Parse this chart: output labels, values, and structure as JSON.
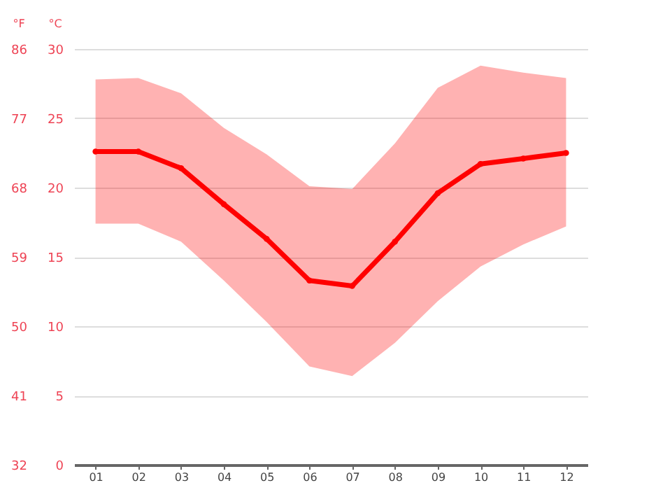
{
  "chart_data": {
    "type": "line",
    "ylabel": "°F",
    "y2label": "°C",
    "categories": [
      "01",
      "02",
      "03",
      "04",
      "05",
      "06",
      "07",
      "08",
      "09",
      "10",
      "11",
      "12"
    ],
    "series": [
      {
        "color": "#ff0000",
        "axis": "y2",
        "values": [
          22.6,
          22.6,
          21.4,
          18.8,
          16.3,
          13.3,
          12.9,
          16.1,
          19.6,
          21.7,
          22.1,
          22.5
        ],
        "lower": [
          17.4,
          17.4,
          16.1,
          13.3,
          10.3,
          7.1,
          6.4,
          8.8,
          11.8,
          14.3,
          15.9,
          17.2
        ],
        "upper": [
          27.8,
          27.9,
          26.8,
          24.3,
          22.4,
          20.1,
          19.9,
          23.2,
          27.2,
          28.8,
          28.3,
          27.9
        ]
      }
    ],
    "ylim": [
      32,
      86
    ],
    "yticks": [
      32,
      41,
      50,
      59,
      68,
      77,
      86
    ],
    "y2lim": [
      0,
      30
    ],
    "y2ticks": [
      0,
      5,
      10,
      15,
      20,
      25,
      30
    ],
    "grid": "y",
    "marker": "circle",
    "line_style": "solid"
  }
}
